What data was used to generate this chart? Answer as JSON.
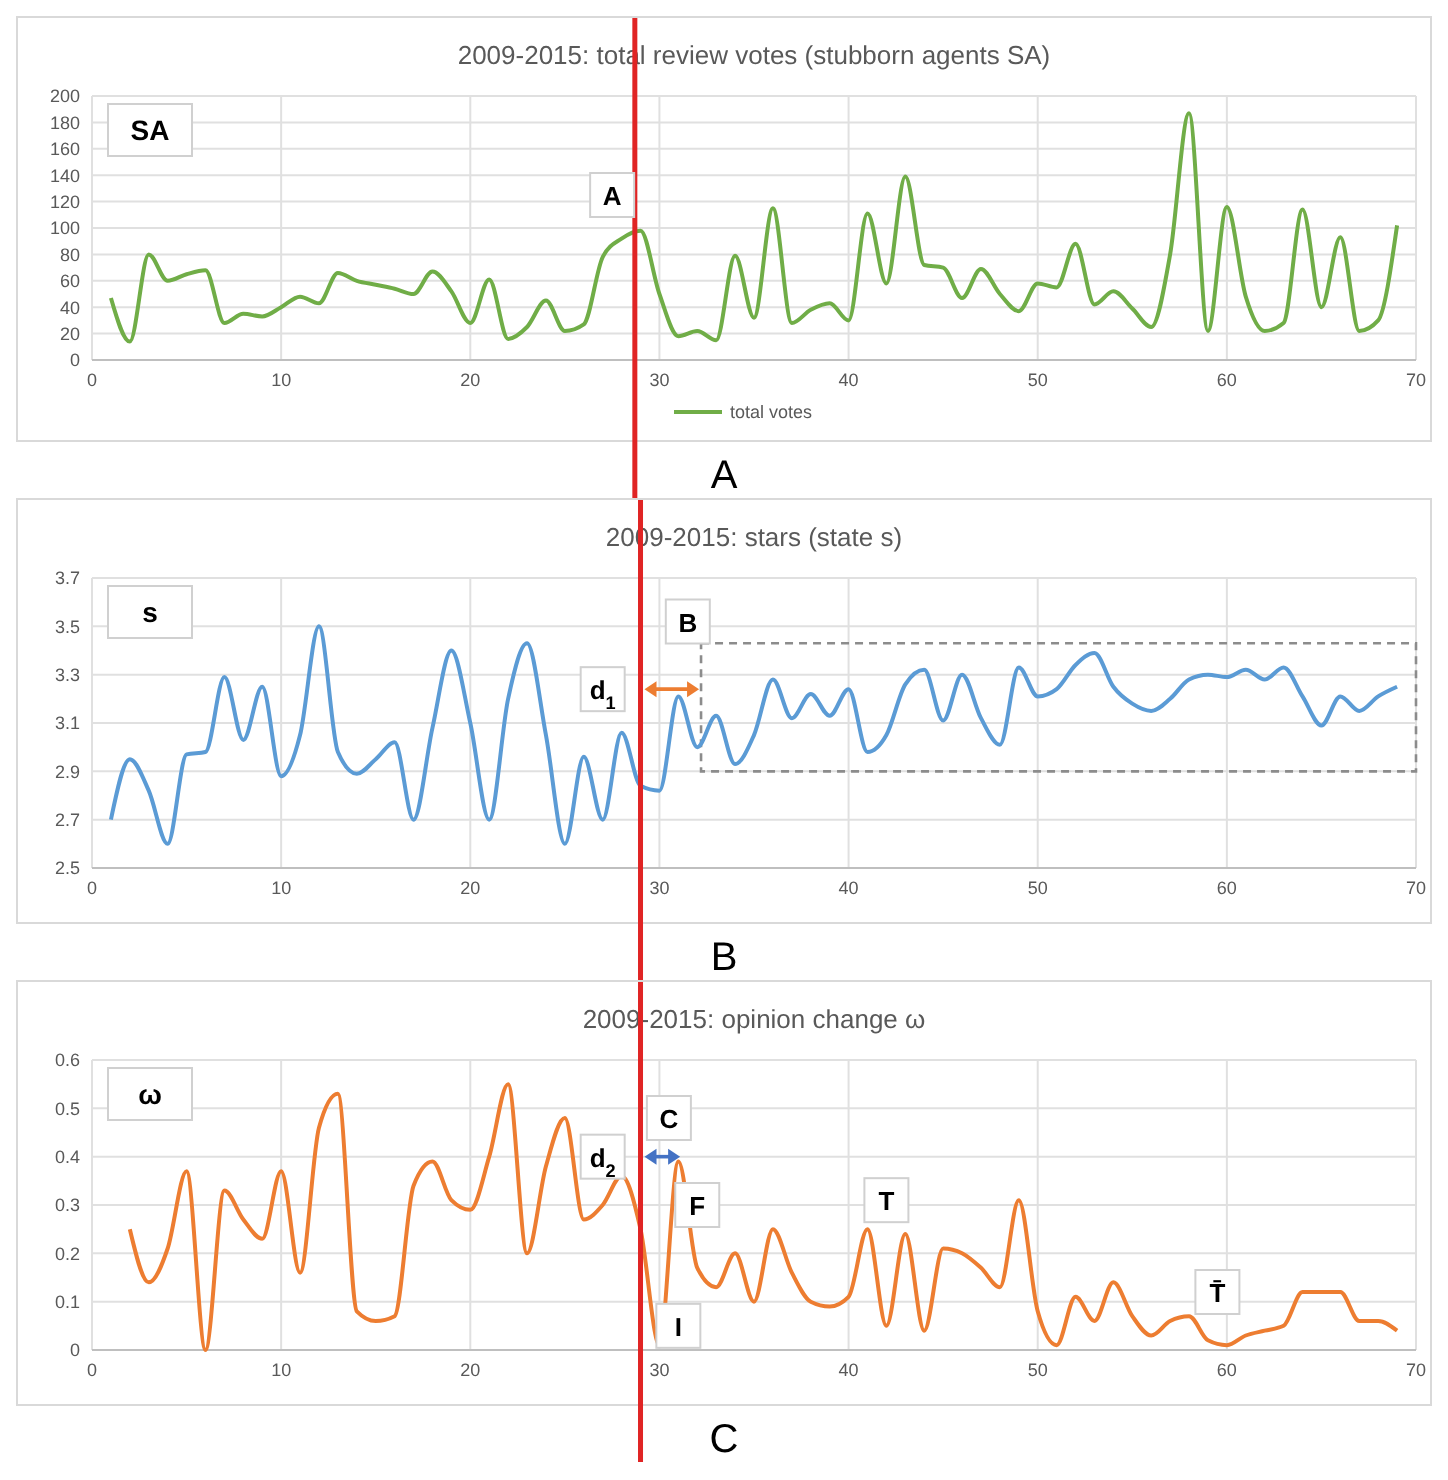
{
  "chart_data": [
    {
      "type": "line",
      "title": "2009-2015: total review votes (stubborn agents SA)",
      "x": [
        1,
        2,
        3,
        4,
        5,
        6,
        7,
        8,
        9,
        10,
        11,
        12,
        13,
        14,
        15,
        16,
        17,
        18,
        19,
        20,
        21,
        22,
        23,
        24,
        25,
        26,
        27,
        28,
        29,
        30,
        31,
        32,
        33,
        34,
        35,
        36,
        37,
        38,
        39,
        40,
        41,
        42,
        43,
        44,
        45,
        46,
        47,
        48,
        49,
        50,
        51,
        52,
        53,
        54,
        55,
        56,
        57,
        58,
        59,
        60,
        61,
        62,
        63,
        64,
        65,
        66,
        67,
        68,
        69
      ],
      "series": [
        {
          "name": "total votes",
          "color": "#70ad47",
          "values": [
            47,
            14,
            80,
            60,
            65,
            68,
            28,
            35,
            33,
            40,
            48,
            43,
            66,
            60,
            57,
            54,
            50,
            67,
            52,
            28,
            61,
            16,
            25,
            45,
            22,
            27,
            78,
            92,
            98,
            50,
            18,
            22,
            15,
            79,
            32,
            115,
            28,
            38,
            43,
            30,
            111,
            58,
            139,
            72,
            70,
            47,
            69,
            50,
            37,
            58,
            55,
            88,
            42,
            52,
            39,
            25,
            80,
            187,
            22,
            116,
            48,
            22,
            28,
            114,
            40,
            93,
            22,
            30,
            102
          ]
        }
      ],
      "xlim": [
        0,
        70
      ],
      "xticks": [
        0,
        10,
        20,
        30,
        40,
        50,
        60,
        70
      ],
      "ylim": [
        0,
        200
      ],
      "yticks": [
        0,
        20,
        40,
        60,
        80,
        100,
        120,
        140,
        160,
        180,
        200
      ],
      "grid": true,
      "legend": "bottom",
      "marker": "none",
      "ref_lines": [
        {
          "axis": "x",
          "value": 28.7,
          "color": "#e02424"
        }
      ],
      "annotations": [
        "SA",
        "A",
        {
          "text": "A",
          "x": 27.5,
          "y": 125
        }
      ]
    },
    {
      "type": "line",
      "title": "2009-2015: stars (state s)",
      "x": [
        1,
        2,
        3,
        4,
        5,
        6,
        7,
        8,
        9,
        10,
        11,
        12,
        13,
        14,
        15,
        16,
        17,
        18,
        19,
        20,
        21,
        22,
        23,
        24,
        25,
        26,
        27,
        28,
        29,
        30,
        31,
        32,
        33,
        34,
        35,
        36,
        37,
        38,
        39,
        40,
        41,
        42,
        43,
        44,
        45,
        46,
        47,
        48,
        49,
        50,
        51,
        52,
        53,
        54,
        55,
        56,
        57,
        58,
        59,
        60,
        61,
        62,
        63,
        64,
        65,
        66,
        67,
        68,
        69
      ],
      "series": [
        {
          "color": "#5b9bd5",
          "values": [
            2.7,
            2.95,
            2.82,
            2.6,
            2.97,
            2.98,
            3.29,
            3.03,
            3.25,
            2.88,
            3.05,
            3.5,
            2.98,
            2.89,
            2.95,
            3.02,
            2.7,
            3.08,
            3.4,
            3.1,
            2.7,
            3.2,
            3.43,
            3.05,
            2.6,
            2.96,
            2.7,
            3.06,
            2.84,
            2.82,
            3.21,
            3.0,
            3.13,
            2.93,
            3.05,
            3.28,
            3.12,
            3.22,
            3.13,
            3.24,
            2.98,
            3.05,
            3.26,
            3.32,
            3.11,
            3.3,
            3.12,
            3.01,
            3.33,
            3.21,
            3.24,
            3.34,
            3.39,
            3.25,
            3.18,
            3.15,
            3.2,
            3.28,
            3.3,
            3.29,
            3.32,
            3.28,
            3.33,
            3.21,
            3.09,
            3.21,
            3.15,
            3.21,
            3.25
          ]
        }
      ],
      "xlim": [
        0,
        70
      ],
      "xticks": [
        0,
        10,
        20,
        30,
        40,
        50,
        60,
        70
      ],
      "ylim": [
        2.5,
        3.7
      ],
      "yticks": [
        2.5,
        2.7,
        2.9,
        3.1,
        3.3,
        3.5,
        3.7
      ],
      "grid": true,
      "marker": "none",
      "ref_lines": [
        {
          "axis": "x",
          "value": 29,
          "color": "#e02424"
        }
      ],
      "annotations": [
        "s",
        "B",
        {
          "text": "B",
          "x": 31.5,
          "y": 3.52
        },
        {
          "text": "d$_{1}$",
          "x": 27,
          "y": 3.24
        }
      ]
    },
    {
      "type": "line",
      "title": "2009-2015: opinion change ω",
      "x": [
        2,
        3,
        4,
        5,
        6,
        7,
        8,
        9,
        10,
        11,
        12,
        13,
        14,
        15,
        16,
        17,
        18,
        19,
        20,
        21,
        22,
        23,
        24,
        25,
        26,
        27,
        28,
        29,
        30,
        31,
        32,
        33,
        34,
        35,
        36,
        37,
        38,
        39,
        40,
        41,
        42,
        43,
        44,
        45,
        46,
        47,
        48,
        49,
        50,
        51,
        52,
        53,
        54,
        55,
        56,
        57,
        58,
        59,
        60,
        61,
        62,
        63,
        64,
        65,
        66,
        67,
        68,
        69
      ],
      "series": [
        {
          "color": "#ed7d31",
          "values": [
            0.25,
            0.14,
            0.21,
            0.37,
            0.0,
            0.33,
            0.27,
            0.23,
            0.37,
            0.16,
            0.46,
            0.53,
            0.08,
            0.06,
            0.07,
            0.34,
            0.39,
            0.31,
            0.29,
            0.4,
            0.55,
            0.2,
            0.38,
            0.48,
            0.27,
            0.3,
            0.36,
            0.25,
            0.01,
            0.39,
            0.17,
            0.13,
            0.2,
            0.1,
            0.25,
            0.16,
            0.1,
            0.09,
            0.11,
            0.25,
            0.05,
            0.24,
            0.04,
            0.21,
            0.2,
            0.17,
            0.13,
            0.31,
            0.08,
            0.01,
            0.11,
            0.06,
            0.14,
            0.07,
            0.03,
            0.06,
            0.07,
            0.02,
            0.01,
            0.03,
            0.04,
            0.05,
            0.12,
            0.12,
            0.12,
            0.06,
            0.06,
            0.04
          ]
        }
      ],
      "xlim": [
        0,
        70
      ],
      "xticks": [
        0,
        10,
        20,
        30,
        40,
        50,
        60,
        70
      ],
      "ylim": [
        0,
        0.6
      ],
      "yticks": [
        0,
        0.1,
        0.2,
        0.3,
        0.4,
        0.5,
        0.6
      ],
      "grid": true,
      "marker": "none",
      "ref_lines": [
        {
          "axis": "x",
          "value": 29,
          "color": "#e02424"
        }
      ],
      "annotations": [
        "ω",
        "C",
        {
          "text": "C",
          "x": 30.5,
          "y": 0.48
        },
        {
          "text": "d$_{2}$",
          "x": 27,
          "y": 0.4
        },
        {
          "text": "F",
          "x": 32,
          "y": 0.3
        },
        {
          "text": "T",
          "x": 42,
          "y": 0.31
        },
        {
          "text": "I",
          "x": 31,
          "y": 0.05
        },
        {
          "text": "T̄",
          "x": 59.5,
          "y": 0.12
        }
      ]
    }
  ]
}
